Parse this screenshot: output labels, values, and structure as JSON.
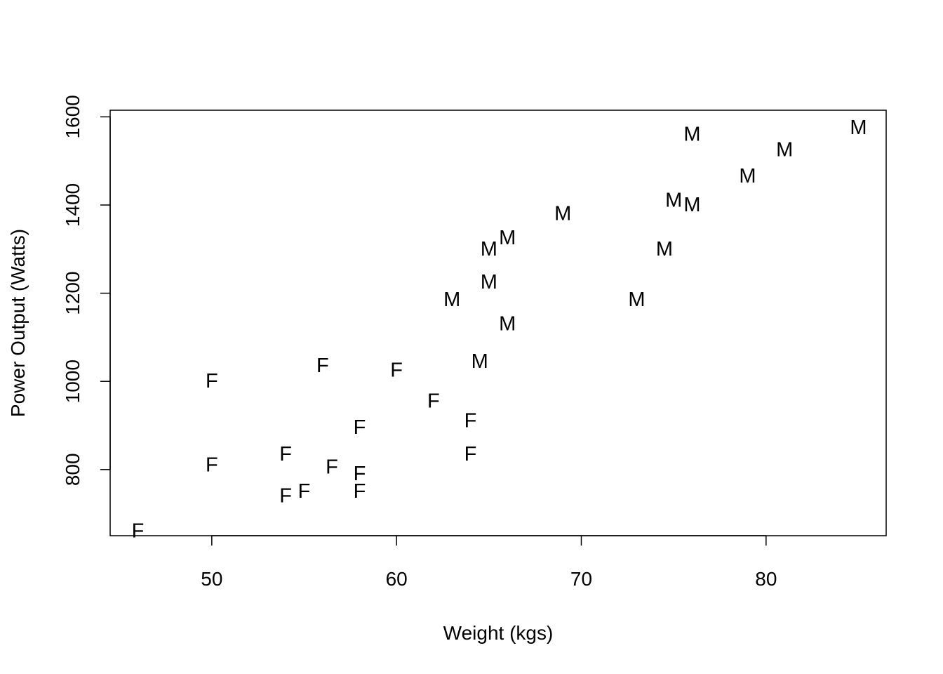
{
  "chart_data": {
    "type": "scatter",
    "xlabel": "Weight (kgs)",
    "ylabel": "Power Output (Watts)",
    "xlim": [
      44.5,
      86.5
    ],
    "ylim": [
      650,
      1615
    ],
    "x_ticks": [
      50,
      60,
      70,
      80
    ],
    "y_ticks": [
      800,
      1000,
      1200,
      1400,
      1600
    ],
    "grid": false,
    "legend": "none",
    "marker_color": "#000000",
    "points": [
      {
        "x": 46,
        "y": 660,
        "label": "F"
      },
      {
        "x": 50,
        "y": 1000,
        "label": "F"
      },
      {
        "x": 50,
        "y": 810,
        "label": "F"
      },
      {
        "x": 54,
        "y": 835,
        "label": "F"
      },
      {
        "x": 54,
        "y": 740,
        "label": "F"
      },
      {
        "x": 55,
        "y": 750,
        "label": "F"
      },
      {
        "x": 56,
        "y": 1035,
        "label": "F"
      },
      {
        "x": 56.5,
        "y": 805,
        "label": "F"
      },
      {
        "x": 58,
        "y": 895,
        "label": "F"
      },
      {
        "x": 58,
        "y": 790,
        "label": "F"
      },
      {
        "x": 58,
        "y": 750,
        "label": "F"
      },
      {
        "x": 60,
        "y": 1025,
        "label": "F"
      },
      {
        "x": 62,
        "y": 955,
        "label": "F"
      },
      {
        "x": 64,
        "y": 910,
        "label": "F"
      },
      {
        "x": 64,
        "y": 835,
        "label": "F"
      },
      {
        "x": 63,
        "y": 1185,
        "label": "M"
      },
      {
        "x": 64.5,
        "y": 1045,
        "label": "M"
      },
      {
        "x": 65,
        "y": 1300,
        "label": "M"
      },
      {
        "x": 65,
        "y": 1225,
        "label": "M"
      },
      {
        "x": 66,
        "y": 1325,
        "label": "M"
      },
      {
        "x": 66,
        "y": 1130,
        "label": "M"
      },
      {
        "x": 69,
        "y": 1380,
        "label": "M"
      },
      {
        "x": 73,
        "y": 1185,
        "label": "M"
      },
      {
        "x": 74.5,
        "y": 1300,
        "label": "M"
      },
      {
        "x": 75,
        "y": 1410,
        "label": "M"
      },
      {
        "x": 76,
        "y": 1400,
        "label": "M"
      },
      {
        "x": 76,
        "y": 1560,
        "label": "M"
      },
      {
        "x": 79,
        "y": 1465,
        "label": "M"
      },
      {
        "x": 81,
        "y": 1525,
        "label": "M"
      },
      {
        "x": 85,
        "y": 1575,
        "label": "M"
      }
    ]
  }
}
